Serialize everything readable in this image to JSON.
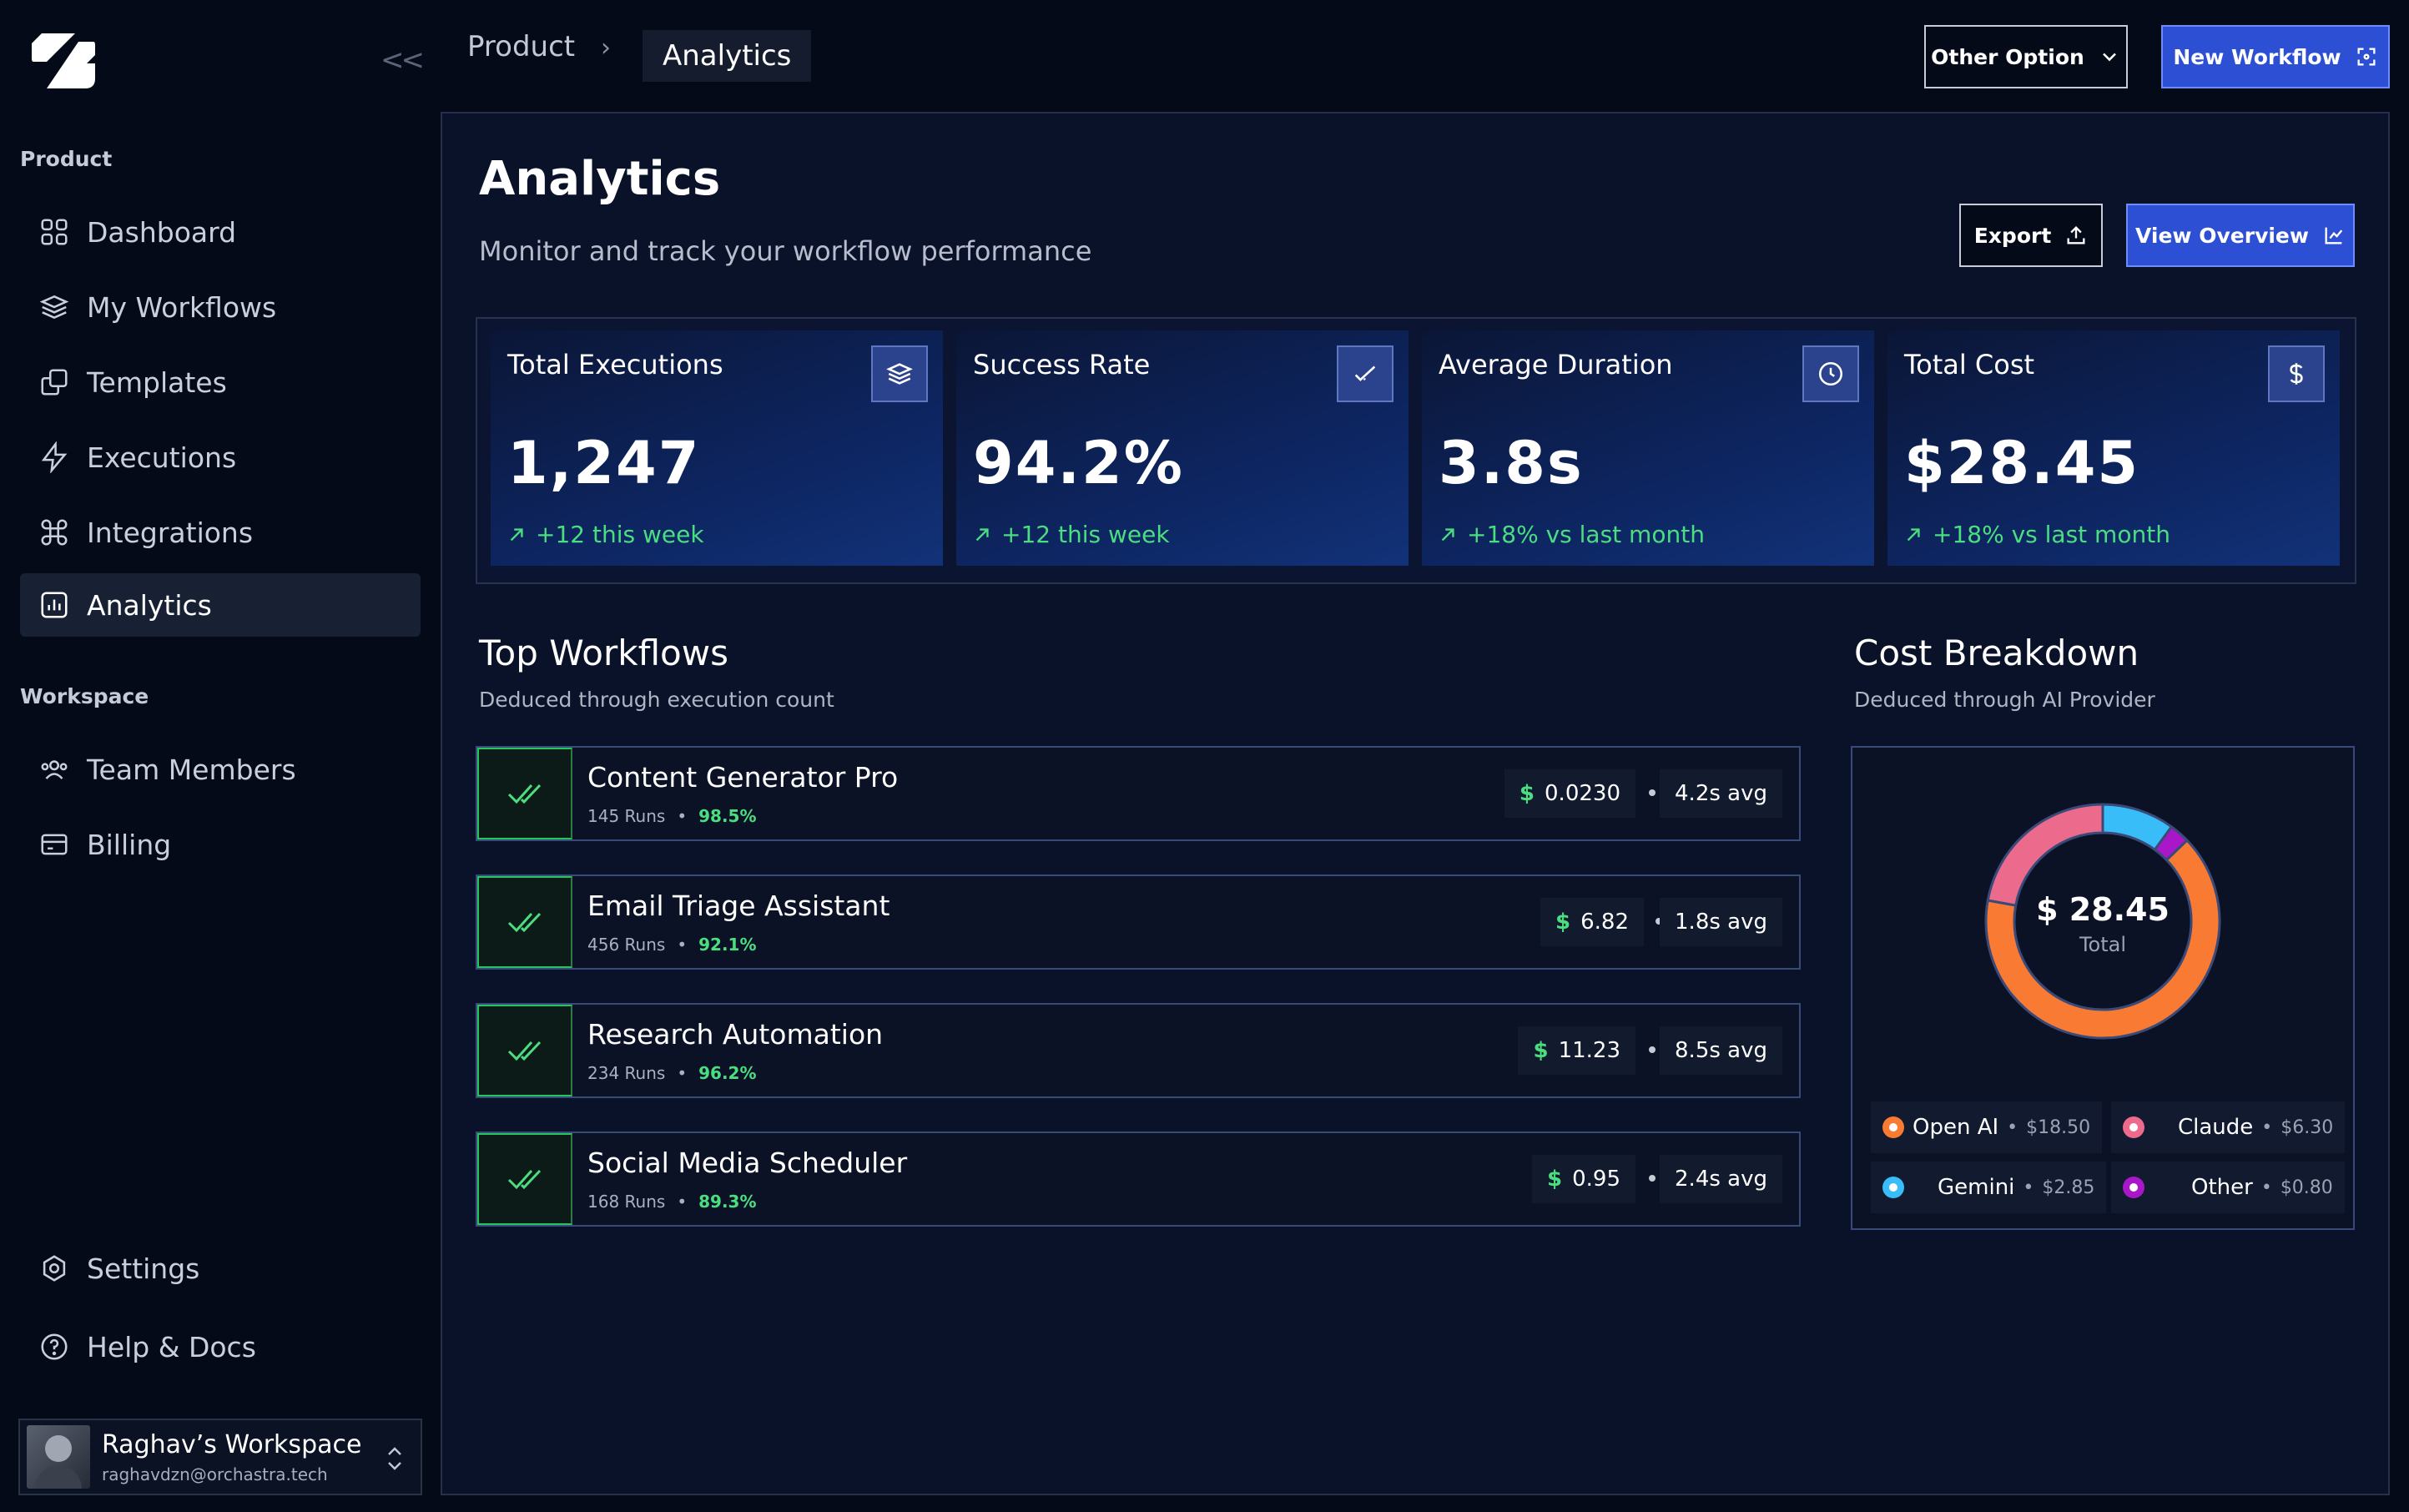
{
  "sidebar": {
    "sections": {
      "product": "Product",
      "workspace": "Workspace"
    },
    "items": {
      "dashboard": "Dashboard",
      "workflows": "My Workflows",
      "templates": "Templates",
      "executions": "Executions",
      "integrations": "Integrations",
      "analytics": "Analytics",
      "team": "Team Members",
      "billing": "Billing",
      "settings": "Settings",
      "help": "Help & Docs"
    },
    "workspace": {
      "name": "Raghav’s Workspace",
      "email": "raghavdzn@orchastra.tech"
    }
  },
  "topbar": {
    "breadcrumb": [
      "Product",
      "Analytics"
    ],
    "other_option": "Other Option",
    "new_workflow": "New Workflow"
  },
  "page": {
    "title": "Analytics",
    "subtitle": "Monitor and track your workflow performance",
    "export": "Export",
    "view_overview": "View Overview"
  },
  "stats": [
    {
      "label": "Total Executions",
      "value": "1,247",
      "delta": "+12 this week",
      "icon": "layers-icon"
    },
    {
      "label": "Success Rate",
      "value": "94.2%",
      "delta": "+12 this week",
      "icon": "check-icon"
    },
    {
      "label": "Average Duration",
      "value": "3.8s",
      "delta": "+18% vs last month",
      "icon": "clock-icon"
    },
    {
      "label": "Total Cost",
      "value": "$28.45",
      "delta": "+18% vs last month",
      "icon": "dollar-icon"
    }
  ],
  "top_workflows": {
    "title": "Top Workflows",
    "subtitle": "Deduced through execution count",
    "rows": [
      {
        "name": "Content Generator Pro",
        "runs": "145 Runs",
        "rate": "98.5%",
        "cost": "0.0230",
        "avg": "4.2s avg"
      },
      {
        "name": "Email Triage Assistant",
        "runs": "456 Runs",
        "rate": "92.1%",
        "cost": "6.82",
        "avg": "1.8s avg"
      },
      {
        "name": "Research Automation",
        "runs": "234 Runs",
        "rate": "96.2%",
        "cost": "11.23",
        "avg": "8.5s avg"
      },
      {
        "name": "Social Media Scheduler",
        "runs": "168 Runs",
        "rate": "89.3%",
        "cost": "0.95",
        "avg": "2.4s avg"
      }
    ],
    "currency": "$"
  },
  "cost_breakdown": {
    "title": "Cost Breakdown",
    "subtitle": "Deduced through AI Provider",
    "total": "$ 28.45",
    "total_label": "Total",
    "providers": [
      {
        "name": "Open AI",
        "amount": "$18.50",
        "value": 18.5,
        "color": "#f97a32"
      },
      {
        "name": "Claude",
        "amount": "$6.30",
        "value": 6.3,
        "color": "#ec6a8c"
      },
      {
        "name": "Gemini",
        "amount": "$2.85",
        "value": 2.85,
        "color": "#38bdf8"
      },
      {
        "name": "Other",
        "amount": "$0.80",
        "value": 0.8,
        "color": "#a818c8"
      }
    ]
  },
  "colors": {
    "accent": "#2d4fd4",
    "positive": "#4ade80",
    "background": "#050a19"
  }
}
